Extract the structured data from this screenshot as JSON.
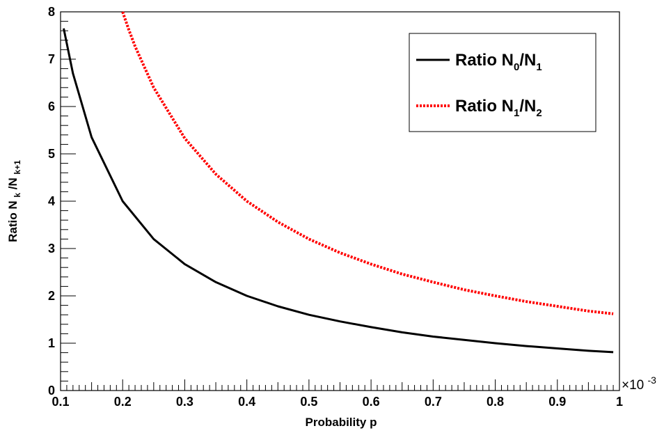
{
  "chart_data": {
    "type": "line",
    "xlabel": "Probability p",
    "ylabel_main": "Ratio N",
    "ylabel_sub1": "k",
    "ylabel_mid": "/N",
    "ylabel_sub2": "k+1",
    "x_multiplier_label": "×10",
    "x_multiplier_exp": "-3",
    "xlim": [
      0.1,
      1.0
    ],
    "ylim": [
      0,
      8
    ],
    "grid": false,
    "legend_position": "top-right",
    "x_tick_labels": [
      "0.1",
      "0.2",
      "0.3",
      "0.4",
      "0.5",
      "0.6",
      "0.7",
      "0.8",
      "0.9",
      "1"
    ],
    "x_tick_values": [
      0.1,
      0.2,
      0.3,
      0.4,
      0.5,
      0.6,
      0.7,
      0.8,
      0.9,
      1.0
    ],
    "y_tick_labels": [
      "0",
      "1",
      "2",
      "3",
      "4",
      "5",
      "6",
      "7",
      "8"
    ],
    "y_tick_values": [
      0,
      1,
      2,
      3,
      4,
      5,
      6,
      7,
      8
    ],
    "series": [
      {
        "legend_main": "Ratio N",
        "legend_sub1": "0",
        "legend_mid": "/N",
        "legend_sub2": "1",
        "color": "#000000",
        "style": "solid",
        "x": [
          0.105,
          0.12,
          0.15,
          0.2,
          0.25,
          0.3,
          0.35,
          0.4,
          0.45,
          0.5,
          0.55,
          0.6,
          0.65,
          0.7,
          0.75,
          0.8,
          0.85,
          0.9,
          0.95,
          0.99
        ],
        "y": [
          7.65,
          6.7,
          5.35,
          4.0,
          3.2,
          2.67,
          2.29,
          2.0,
          1.78,
          1.6,
          1.46,
          1.34,
          1.23,
          1.14,
          1.07,
          1.0,
          0.94,
          0.89,
          0.84,
          0.81
        ]
      },
      {
        "legend_main": "Ratio N",
        "legend_sub1": "1",
        "legend_mid": "/N",
        "legend_sub2": "2",
        "color": "#ff0000",
        "style": "dotted",
        "x": [
          0.2,
          0.21,
          0.22,
          0.25,
          0.3,
          0.35,
          0.4,
          0.45,
          0.5,
          0.55,
          0.6,
          0.65,
          0.7,
          0.75,
          0.8,
          0.85,
          0.9,
          0.95,
          0.99
        ],
        "y": [
          8.0,
          7.62,
          7.27,
          6.4,
          5.33,
          4.57,
          4.0,
          3.56,
          3.2,
          2.91,
          2.67,
          2.46,
          2.29,
          2.13,
          2.0,
          1.88,
          1.78,
          1.68,
          1.62
        ]
      }
    ]
  }
}
